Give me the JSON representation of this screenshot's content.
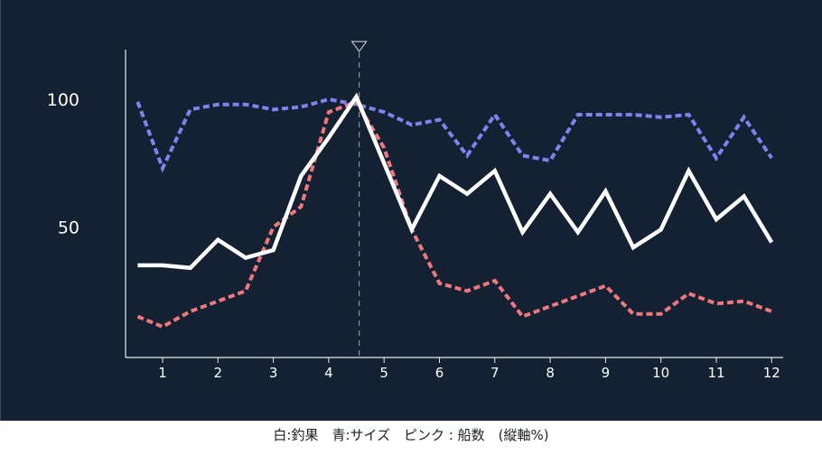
{
  "caption": {
    "prefix": "白:釣果　青:サイズ　ピンク : 船数　(縦軸%)"
  },
  "chart_data": {
    "type": "line",
    "x_ticks": [
      "1",
      "2",
      "3",
      "4",
      "5",
      "6",
      "7",
      "8",
      "9",
      "10",
      "11",
      "12"
    ],
    "y_ticks": [
      "100",
      "50"
    ],
    "ylim": [
      0,
      120
    ],
    "x": [
      0.55,
      1,
      1.5,
      2,
      2.5,
      3,
      3.5,
      4,
      4.5,
      5,
      5.5,
      6,
      6.5,
      7,
      7.5,
      8,
      8.5,
      9,
      9.5,
      10,
      10.5,
      11,
      11.5,
      12
    ],
    "marker_x": 4.55,
    "grid": false,
    "series": [
      {
        "color": "#7f83f2",
        "style": "dashed",
        "values": [
          99,
          73,
          96,
          98,
          98,
          96,
          97,
          100,
          98,
          95,
          90,
          92,
          78,
          94,
          78,
          76,
          94,
          94,
          94,
          93,
          94,
          77,
          93,
          77
        ]
      },
      {
        "color": "#f0787d",
        "style": "dashed",
        "values": [
          15,
          11,
          17,
          21,
          25,
          50,
          58,
          95,
          99,
          81,
          49,
          28,
          25,
          29,
          15,
          19,
          23,
          27,
          16,
          16,
          24,
          20,
          21,
          17
        ]
      },
      {
        "color": "#ffffff",
        "style": "solid",
        "values": [
          35,
          35,
          34,
          45,
          38,
          41,
          70,
          85,
          101,
          75,
          49,
          70,
          63,
          72,
          48,
          63,
          48,
          64,
          42,
          49,
          72,
          53,
          62,
          44
        ]
      }
    ]
  }
}
